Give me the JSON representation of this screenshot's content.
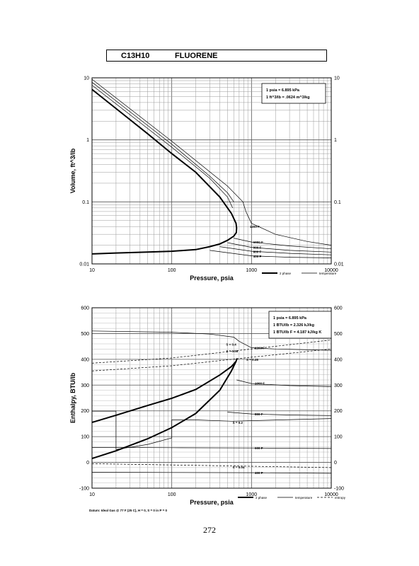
{
  "header": {
    "formula": "C13H10",
    "name": "FLUORENE"
  },
  "page_number": "272",
  "chart_data": [
    {
      "type": "line",
      "xscale": "log",
      "yscale": "log",
      "xlim": [
        10,
        10000
      ],
      "ylim": [
        0.01,
        10
      ],
      "xlabel": "Pressure,  psia",
      "ylabel": "Volume,  ft^3/lb",
      "x_ticks": [
        "10",
        "100",
        "1000",
        "10000"
      ],
      "y_ticks": [
        "0.01",
        "0.1",
        "1",
        "10"
      ],
      "grid": true,
      "info_box": [
        "1 psia = 6.895 kPa",
        "1 ft^3/lb = .0624 m^3/kg"
      ],
      "legend": [
        "2 phase",
        "temperature"
      ],
      "legend_position": "bottom-right, below plot",
      "isotherm_labels": [
        {
          "text": "1200 F",
          "x": 950,
          "y": 0.04
        },
        {
          "text": "1000 F",
          "x": 1050,
          "y": 0.0225
        },
        {
          "text": "900 F",
          "x": 1050,
          "y": 0.0185
        },
        {
          "text": "800 F",
          "x": 1050,
          "y": 0.0158
        },
        {
          "text": "400 F",
          "x": 1050,
          "y": 0.0133
        }
      ],
      "series": [
        {
          "role": "2 phase",
          "x": [
            10,
            20,
            50,
            100,
            200,
            400,
            560,
            640,
            650,
            645,
            600,
            500,
            400,
            300,
            200,
            100,
            50,
            20,
            10
          ],
          "y": [
            6.5,
            3.2,
            1.25,
            0.6,
            0.3,
            0.12,
            0.065,
            0.045,
            0.038,
            0.032,
            0.028,
            0.024,
            0.021,
            0.019,
            0.017,
            0.016,
            0.0155,
            0.015,
            0.0145
          ]
        },
        {
          "role": "temperature",
          "x": [
            10,
            100,
            500,
            780,
            850,
            1000,
            2000,
            5000,
            10000
          ],
          "y": [
            9.5,
            0.95,
            0.18,
            0.1,
            0.07,
            0.045,
            0.03,
            0.023,
            0.02
          ]
        },
        {
          "role": "temperature",
          "x": [
            10,
            100,
            300,
            500,
            600
          ],
          "y": [
            8.5,
            0.85,
            0.26,
            0.14,
            0.1
          ]
        },
        {
          "role": "temperature",
          "x": [
            10,
            100,
            300,
            500,
            580
          ],
          "y": [
            7.6,
            0.76,
            0.24,
            0.12,
            0.08
          ]
        },
        {
          "role": "temperature",
          "x": [
            600,
            1000,
            3000,
            10000
          ],
          "y": [
            0.026,
            0.0225,
            0.0195,
            0.0175
          ]
        },
        {
          "role": "temperature",
          "x": [
            500,
            1000,
            3000,
            10000
          ],
          "y": [
            0.022,
            0.0185,
            0.0165,
            0.0155
          ]
        },
        {
          "role": "temperature",
          "x": [
            400,
            1000,
            3000,
            10000
          ],
          "y": [
            0.019,
            0.016,
            0.0148,
            0.014
          ]
        },
        {
          "role": "temperature",
          "x": [
            300,
            1000,
            3000,
            10000
          ],
          "y": [
            0.0165,
            0.0135,
            0.0128,
            0.0125
          ]
        }
      ]
    },
    {
      "type": "line",
      "xscale": "log",
      "yscale": "linear",
      "xlim": [
        10,
        10000
      ],
      "ylim": [
        -100,
        600
      ],
      "xlabel": "Pressure,  psia",
      "ylabel": "Enthalpy,  BTU/lb",
      "x_ticks": [
        "10",
        "100",
        "1000",
        "10000"
      ],
      "y_ticks": [
        "-100",
        "0",
        "100",
        "200",
        "300",
        "400",
        "500",
        "600"
      ],
      "grid": true,
      "info_box": [
        "1 psia = 6.895 kPa",
        "1 BTU/lb = 2.326 kJ/kg",
        "1 BTU/lb F = 4.187 kJ/kg K"
      ],
      "legend": [
        "2 phase",
        "temperature",
        "entropy"
      ],
      "legend_position": "bottom-right, below plot",
      "footnote": "Datum: Ideal Gas @ 77 F (25 C),  H = 0,  S = 0 in P = 0",
      "isotherm_labels": [
        {
          "text": "1200 F",
          "x": 1100,
          "y": 445
        },
        {
          "text": "1000 F",
          "x": 1100,
          "y": 307
        },
        {
          "text": "800 F",
          "x": 1100,
          "y": 188
        },
        {
          "text": "600 F",
          "x": 1100,
          "y": 56
        },
        {
          "text": "400 F",
          "x": 1100,
          "y": -40
        }
      ],
      "entropy_labels": [
        {
          "text": "S = 0.4",
          "x": 480,
          "y": 459
        },
        {
          "text": "S = 0.36",
          "x": 480,
          "y": 432
        },
        {
          "text": "S = 0.28",
          "x": 860,
          "y": 399
        },
        {
          "text": "S = 0.2",
          "x": 580,
          "y": 155
        },
        {
          "text": "S = 0.04",
          "x": 580,
          "y": -18
        }
      ],
      "series": [
        {
          "role": "2 phase",
          "x": [
            10,
            20,
            50,
            100,
            200,
            400,
            560,
            640,
            660,
            640,
            560,
            400,
            200,
            100,
            50,
            20,
            10
          ],
          "y": [
            155,
            183,
            221,
            249,
            283,
            339,
            372,
            392,
            404,
            392,
            355,
            280,
            190,
            135,
            92,
            45,
            15
          ]
        },
        {
          "role": "temperature",
          "x": [
            10,
            100,
            300,
            600,
            700,
            1000,
            2000,
            10000
          ],
          "y": [
            510,
            505,
            498,
            486,
            470,
            445,
            440,
            435
          ]
        },
        {
          "role": "temperature",
          "x": [
            650,
            1000,
            3000,
            10000
          ],
          "y": [
            320,
            306,
            298,
            294
          ]
        },
        {
          "role": "temperature",
          "x": [
            500,
            1000,
            3000,
            10000
          ],
          "y": [
            195,
            188,
            184,
            182
          ]
        },
        {
          "role": "temperature",
          "x": [
            10,
            100,
            1000,
            10000
          ],
          "y": [
            58,
            57,
            56,
            54
          ]
        },
        {
          "role": "temperature",
          "x": [
            10,
            100,
            1000,
            10000
          ],
          "y": [
            -38,
            -39,
            -40,
            -42
          ]
        },
        {
          "role": "temperature",
          "x": [
            10,
            20,
            20,
            50,
            100,
            100,
            200,
            560,
            10000
          ],
          "y": [
            199,
            199,
            50,
            70,
            95,
            165,
            165,
            160,
            170
          ]
        },
        {
          "role": "entropy",
          "x": [
            10,
            100,
            1000,
            10000
          ],
          "y": [
            385,
            405,
            440,
            475
          ]
        },
        {
          "role": "entropy",
          "x": [
            10,
            100,
            1000,
            10000
          ],
          "y": [
            355,
            375,
            408,
            440
          ]
        },
        {
          "role": "entropy",
          "x": [
            10,
            100,
            1000,
            10000
          ],
          "y": [
            -5,
            -10,
            -15,
            -20
          ]
        }
      ]
    }
  ]
}
